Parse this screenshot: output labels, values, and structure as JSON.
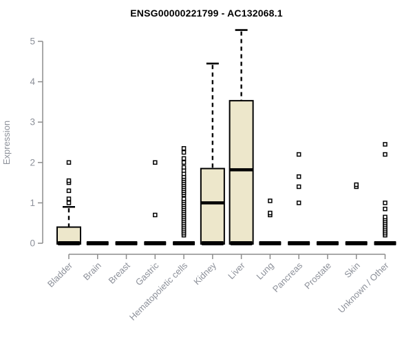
{
  "page": {
    "title": "ENSG00000221799 - AC132068.1"
  },
  "chart_data": {
    "type": "boxplot",
    "title": "ENSG00000221799 - AC132068.1",
    "xlabel": "",
    "ylabel": "Expression",
    "ylim": [
      0,
      5
    ],
    "yticks": [
      0,
      1,
      2,
      3,
      4,
      5
    ],
    "grid": false,
    "legend": "none",
    "categories": [
      "Bladder",
      "Brain",
      "Breast",
      "Gastric",
      "Hematopoietic cells",
      "Kidney",
      "Liver",
      "Lung",
      "Pancreas",
      "Prostate",
      "Skin",
      "Unknown / Other"
    ],
    "boxes": [
      {
        "category": "Bladder",
        "min": 0,
        "q1": 0,
        "median": 0,
        "q3": 0.4,
        "whisker_high": 0.9,
        "outliers": [
          1.0,
          1.1,
          1.3,
          1.5,
          1.55,
          2.0
        ]
      },
      {
        "category": "Brain",
        "min": 0,
        "q1": 0,
        "median": 0,
        "q3": 0,
        "whisker_high": 0,
        "outliers": []
      },
      {
        "category": "Breast",
        "min": 0,
        "q1": 0,
        "median": 0,
        "q3": 0,
        "whisker_high": 0,
        "outliers": []
      },
      {
        "category": "Gastric",
        "min": 0,
        "q1": 0,
        "median": 0,
        "q3": 0,
        "whisker_high": 0,
        "outliers": [
          0.7,
          2.0
        ]
      },
      {
        "category": "Hematopoietic cells",
        "min": 0,
        "q1": 0,
        "median": 0,
        "q3": 0,
        "whisker_high": 0,
        "outliers": [
          0.2,
          0.25,
          0.3,
          0.35,
          0.4,
          0.45,
          0.5,
          0.55,
          0.6,
          0.65,
          0.7,
          0.75,
          0.8,
          0.85,
          0.9,
          0.95,
          1.0,
          1.05,
          1.1,
          1.2,
          1.25,
          1.3,
          1.35,
          1.4,
          1.45,
          1.5,
          1.55,
          1.6,
          1.65,
          1.72,
          1.8,
          1.88,
          2.0,
          2.1,
          2.25,
          2.35
        ]
      },
      {
        "category": "Kidney",
        "min": 0,
        "q1": 0.03,
        "median": 1.0,
        "q3": 1.85,
        "whisker_high": 4.45,
        "outliers": []
      },
      {
        "category": "Liver",
        "min": 0,
        "q1": 0.03,
        "median": 1.82,
        "q3": 3.53,
        "whisker_high": 5.28,
        "outliers": []
      },
      {
        "category": "Lung",
        "min": 0,
        "q1": 0,
        "median": 0,
        "q3": 0,
        "whisker_high": 0,
        "outliers": [
          0.7,
          0.75,
          1.05
        ]
      },
      {
        "category": "Pancreas",
        "min": 0,
        "q1": 0,
        "median": 0,
        "q3": 0,
        "whisker_high": 0,
        "outliers": [
          1.0,
          1.4,
          1.65,
          2.2
        ]
      },
      {
        "category": "Prostate",
        "min": 0,
        "q1": 0,
        "median": 0,
        "q3": 0,
        "whisker_high": 0,
        "outliers": []
      },
      {
        "category": "Skin",
        "min": 0,
        "q1": 0,
        "median": 0,
        "q3": 0,
        "whisker_high": 0,
        "outliers": [
          1.4,
          1.45
        ]
      },
      {
        "category": "Unknown / Other",
        "min": 0,
        "q1": 0,
        "median": 0,
        "q3": 0,
        "whisker_high": 0,
        "outliers": [
          0.2,
          0.25,
          0.3,
          0.35,
          0.4,
          0.45,
          0.5,
          0.55,
          0.6,
          0.65,
          0.85,
          1.0,
          2.2,
          2.45
        ]
      }
    ],
    "colors": {
      "box_fill": "#EDE7CB",
      "box_stroke": "#000000",
      "median": "#000000",
      "whisker": "#000000",
      "outlier_stroke": "#000000",
      "axis": "#8C8C8C",
      "tick_label": "#8C9099",
      "title": "#000000"
    }
  }
}
